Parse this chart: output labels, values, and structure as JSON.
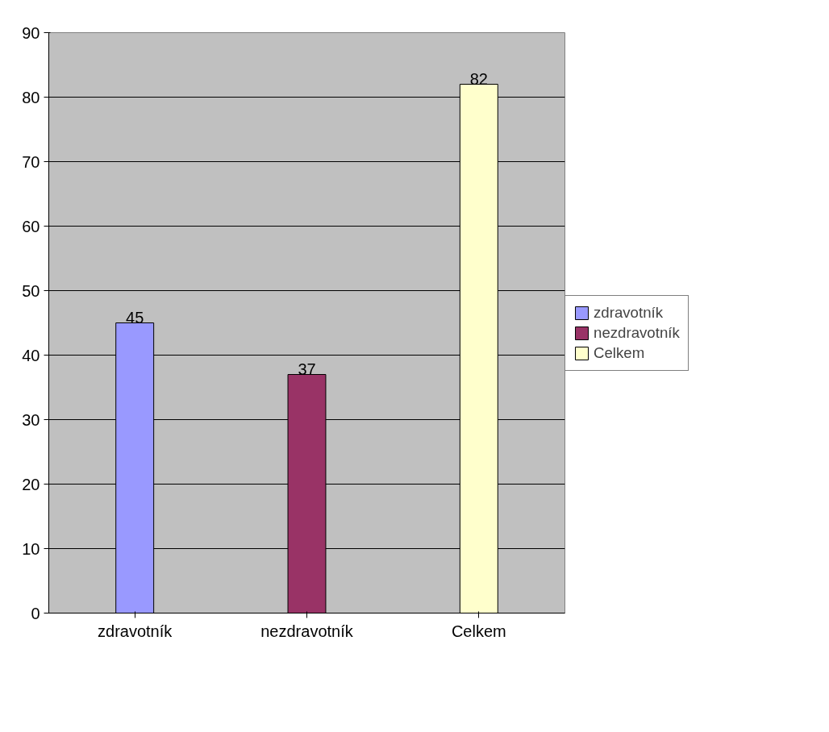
{
  "chart_data": {
    "type": "bar",
    "categories": [
      "zdravotník",
      "nezdravotník",
      "Celkem"
    ],
    "series": [
      {
        "name": "zdravotník",
        "color": "#9999ff",
        "values": [
          45,
          null,
          null
        ]
      },
      {
        "name": "nezdravotník",
        "color": "#993366",
        "values": [
          null,
          37,
          null
        ]
      },
      {
        "name": "Celkem",
        "color": "#ffffcc",
        "values": [
          null,
          null,
          82
        ]
      }
    ],
    "ylim": [
      0,
      90
    ],
    "yticks": [
      0,
      10,
      20,
      30,
      40,
      50,
      60,
      70,
      80,
      90
    ],
    "grid": "y",
    "legend": "right",
    "data_labels": true
  }
}
